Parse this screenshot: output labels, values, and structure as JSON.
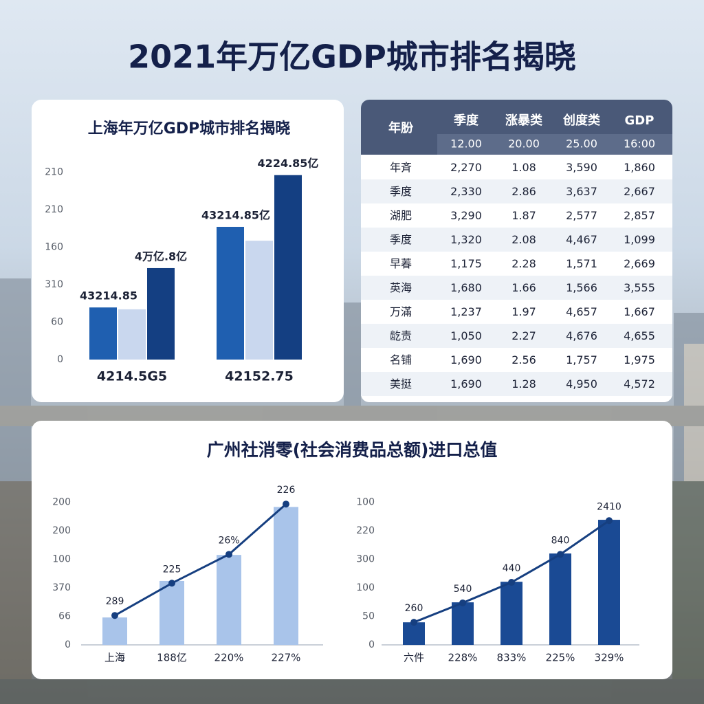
{
  "title": "2021年万亿GDP城市排名揭晓",
  "chart_data": [
    {
      "type": "bar",
      "title": "上海年万亿GDP城市排名揭晓",
      "categories": [
        "4214.5G5",
        "42152.75"
      ],
      "series": [
        {
          "color": "#1f5fb0",
          "values": [
            1.39,
            3.54
          ]
        },
        {
          "color": "#c9d7ee",
          "values": [
            1.34,
            3.17
          ]
        },
        {
          "color": "#143f82",
          "values": [
            2.44,
            4.92
          ]
        }
      ],
      "annotations": [
        "43214.85",
        "4万亿.8亿",
        "43214.85亿",
        "4224.85亿"
      ],
      "ylim": [
        0,
        5.3
      ],
      "yticks": [
        {
          "value": 0,
          "label": "0"
        },
        {
          "value": 1,
          "label": "60"
        },
        {
          "value": 2,
          "label": "310"
        },
        {
          "value": 3,
          "label": "160"
        },
        {
          "value": 4,
          "label": "210"
        },
        {
          "value": 5,
          "label": "210"
        }
      ],
      "grid": false
    },
    {
      "type": "bar_line",
      "categories": [
        "上海",
        "188亿",
        "220%",
        "227%"
      ],
      "series": [
        {
          "kind": "bar",
          "color": "#a9c4ea",
          "values": [
            0.96,
            2.24,
            3.15,
            4.83
          ]
        },
        {
          "kind": "line",
          "color": "#163f80",
          "values": [
            1.03,
            2.16,
            3.17,
            4.93
          ]
        }
      ],
      "annotations": [
        "289",
        "225",
        "26%",
        "226"
      ],
      "ylim": [
        0,
        5.2
      ],
      "yticks": [
        {
          "value": 0,
          "label": "0"
        },
        {
          "value": 1,
          "label": "66"
        },
        {
          "value": 2,
          "label": "370"
        },
        {
          "value": 3,
          "label": "100"
        },
        {
          "value": 4,
          "label": "200"
        },
        {
          "value": 5,
          "label": "200"
        }
      ],
      "grid": false
    },
    {
      "type": "bar_line",
      "categories": [
        "六件",
        "228%",
        "833%",
        "225%",
        "329%"
      ],
      "series": [
        {
          "kind": "bar",
          "color": "#1a4a94",
          "values": [
            0.79,
            1.49,
            2.21,
            3.2,
            4.38
          ]
        },
        {
          "kind": "line",
          "color": "#163f80",
          "values": [
            0.79,
            1.47,
            2.19,
            3.17,
            4.35
          ]
        }
      ],
      "annotations": [
        "260",
        "540",
        "440",
        "840",
        "2410"
      ],
      "ylim": [
        0,
        5.2
      ],
      "yticks": [
        {
          "value": 0,
          "label": "0"
        },
        {
          "value": 1,
          "label": "50"
        },
        {
          "value": 2,
          "label": "100"
        },
        {
          "value": 3,
          "label": "300"
        },
        {
          "value": 4,
          "label": "220"
        },
        {
          "value": 5,
          "label": "100"
        }
      ],
      "grid": false
    }
  ],
  "table": {
    "header": [
      "年肦",
      "季度",
      "涨暴类",
      "创度类",
      "GDP"
    ],
    "subheader": [
      "12.00",
      "20.00",
      "25.00",
      "16:00"
    ],
    "rows": [
      [
        "年斉",
        "2,270",
        "1.08",
        "3,590",
        "1,860"
      ],
      [
        "季度",
        "2,330",
        "2.86",
        "3,637",
        "2,667"
      ],
      [
        "湖肥",
        "3,290",
        "1.87",
        "2,577",
        "2,857"
      ],
      [
        "季度",
        "1,320",
        "2.08",
        "4,467",
        "1,099"
      ],
      [
        "早萶",
        "1,175",
        "2.28",
        "1,571",
        "2,669"
      ],
      [
        "英海",
        "1,680",
        "1.66",
        "1,566",
        "3,555"
      ],
      [
        "万滿",
        "1,237",
        "1.97",
        "4,657",
        "1,667"
      ],
      [
        "龁责",
        "1,050",
        "2.27",
        "4,676",
        "4,655"
      ],
      [
        "名铺",
        "1,690",
        "2.56",
        "1,757",
        "1,975"
      ],
      [
        "美挺",
        "1,690",
        "1.28",
        "4,950",
        "4,572"
      ]
    ]
  },
  "bottom_panel": {
    "title": "广州社消零(社会消费品总额)进口总值"
  }
}
